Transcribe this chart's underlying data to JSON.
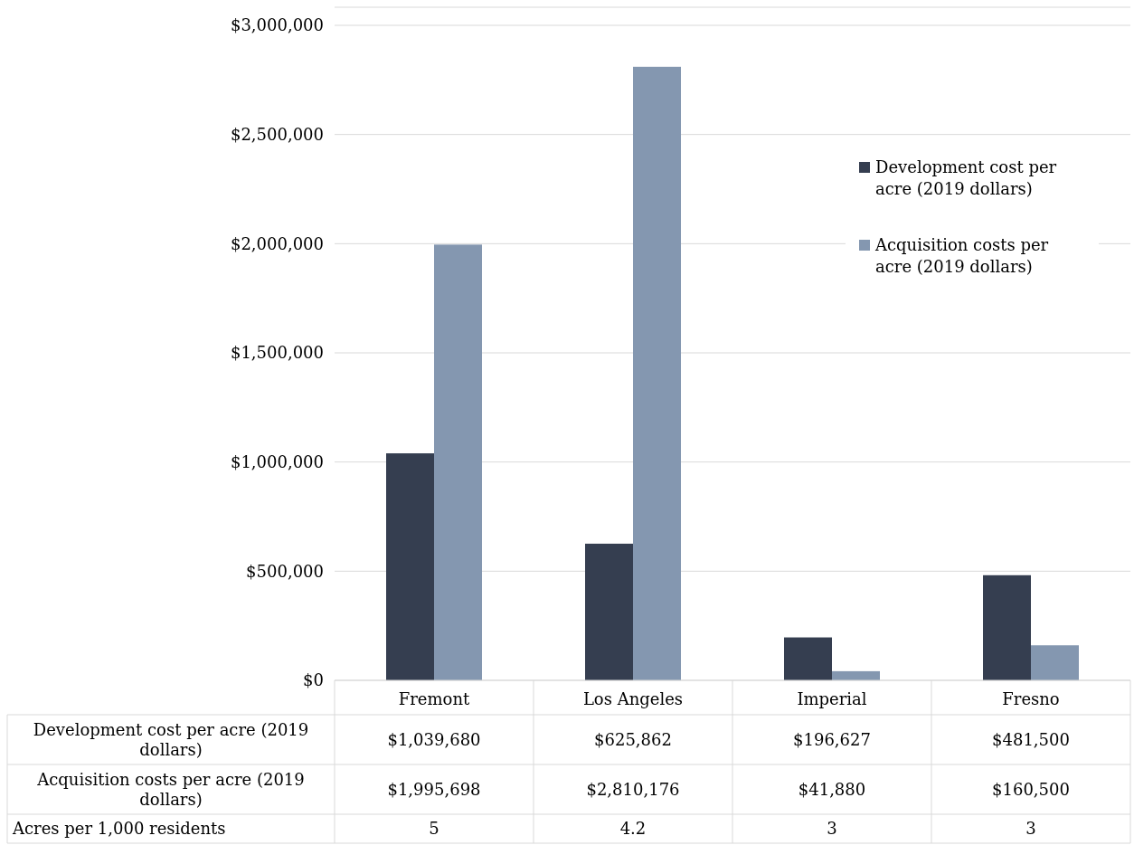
{
  "chart_data": {
    "type": "bar",
    "categories": [
      "Fremont",
      "Los Angeles",
      "Imperial",
      "Fresno"
    ],
    "ylim": [
      0,
      3000000
    ],
    "yticks": [
      {
        "value": 0,
        "label": "$0"
      },
      {
        "value": 500000,
        "label": "$500,000"
      },
      {
        "value": 1000000,
        "label": "$1,000,000"
      },
      {
        "value": 1500000,
        "label": "$1,500,000"
      },
      {
        "value": 2000000,
        "label": "$2,000,000"
      },
      {
        "value": 2500000,
        "label": "$2,500,000"
      },
      {
        "value": 3000000,
        "label": "$3,000,000"
      }
    ],
    "grid": "y",
    "legend": "right",
    "annotations": [
      "Acres per 1,000 residents",
      "5",
      "4.2",
      "3",
      "3"
    ],
    "series": [
      {
        "name": "Development cost per acre (2019 dollars)",
        "color": "#353e50",
        "values": [
          1039680,
          625862,
          196627,
          481500
        ],
        "value_labels": [
          "$1,039,680",
          "$625,862",
          "$196,627",
          "$481,500"
        ]
      },
      {
        "name": "Acquisition costs per acre (2019 dollars)",
        "color": "#8497b0",
        "values": [
          1995698,
          2810176,
          41880,
          160500
        ],
        "value_labels": [
          "$1,995,698",
          "$2,810,176",
          "$41,880",
          "$160,500"
        ]
      }
    ]
  }
}
